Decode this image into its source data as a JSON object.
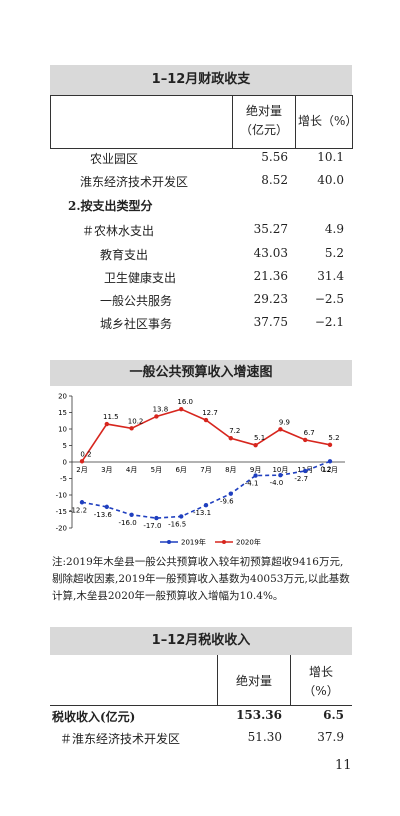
{
  "table1": {
    "title": "1–12月财政收支",
    "headers": [
      "绝对量（亿元）",
      "增长（%）"
    ],
    "rows": [
      [
        "农业园区",
        "5.56",
        "10.1"
      ],
      [
        "淮东经济技术开发区",
        "8.52",
        "40.0"
      ],
      [
        "2.按支出类型分"
      ],
      [
        "＃农林水支出",
        "35.27",
        "4.9"
      ],
      [
        "教育支出",
        "43.03",
        "5.2"
      ],
      [
        "卫生健康支出",
        "21.36",
        "31.4"
      ],
      [
        "一般公共服务",
        "29.23",
        "−2.5"
      ],
      [
        "城乡社区事务",
        "37.75",
        "−2.1"
      ]
    ]
  },
  "chart_data": {
    "type": "line",
    "title": "一般公共预算收入增速图",
    "categories": [
      "2月",
      "3月",
      "4月",
      "5月",
      "6月",
      "7月",
      "8月",
      "9月",
      "10月",
      "11月",
      "12月"
    ],
    "series": [
      {
        "name": "2019年",
        "color": "#1f3fbf",
        "values": [
          -12.2,
          -13.6,
          -16.0,
          -17.0,
          -16.5,
          -13.1,
          -9.6,
          -4.1,
          -4.0,
          -2.7,
          0.2
        ],
        "value_labels": [
          "-12.2",
          "-13.6",
          "-16.0",
          "-17.0",
          "-16.5",
          "-13.1",
          "-9.6",
          "-4.1",
          "-4.0",
          "-2.7",
          "0.2"
        ]
      },
      {
        "name": "2020年",
        "color": "#d7261e",
        "values": [
          0.2,
          11.5,
          10.2,
          13.8,
          16.0,
          12.7,
          7.2,
          5.1,
          9.9,
          6.7,
          5.2
        ],
        "value_labels": [
          "0.2",
          "11.5",
          "10.2",
          "13.8",
          "16.0",
          "12.7",
          "7.2",
          "5.1",
          "9.9",
          "6.7",
          "5.2"
        ]
      }
    ],
    "ylim": [
      -20,
      20
    ],
    "yticks": [
      -20,
      -15,
      -10,
      -5,
      0,
      5,
      10,
      15,
      20
    ]
  },
  "note": "注:2019年木垒县一般公共预算收入较年初预算超收9416万元,剔除超收因素,2019年一般预算收入基数为40053万元,以此基数计算,木垒县2020年一般预算收入增幅为10.4%。",
  "table2": {
    "title": "1–12月税收收入",
    "headers": [
      "绝对量",
      "增长（%）"
    ],
    "rows": [
      [
        "税收收入(亿元)",
        "153.36",
        "6.5"
      ],
      [
        "＃淮东经济技术开发区",
        "51.30",
        "37.9"
      ]
    ]
  },
  "page_number": "11"
}
